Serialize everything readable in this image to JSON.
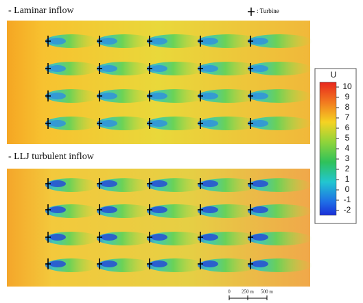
{
  "panels": [
    {
      "title": "- Laminar inflow"
    },
    {
      "title": "- LLJ turbulent inflow"
    }
  ],
  "legend": {
    "label": ": Turbine"
  },
  "colorbar": {
    "title": "U",
    "ticks": [
      10,
      9,
      8,
      7,
      6,
      5,
      4,
      3,
      2,
      1,
      0,
      -1,
      -2
    ]
  },
  "scale_bar": {
    "labels": [
      "0",
      "250 m",
      "500 m"
    ]
  }
}
